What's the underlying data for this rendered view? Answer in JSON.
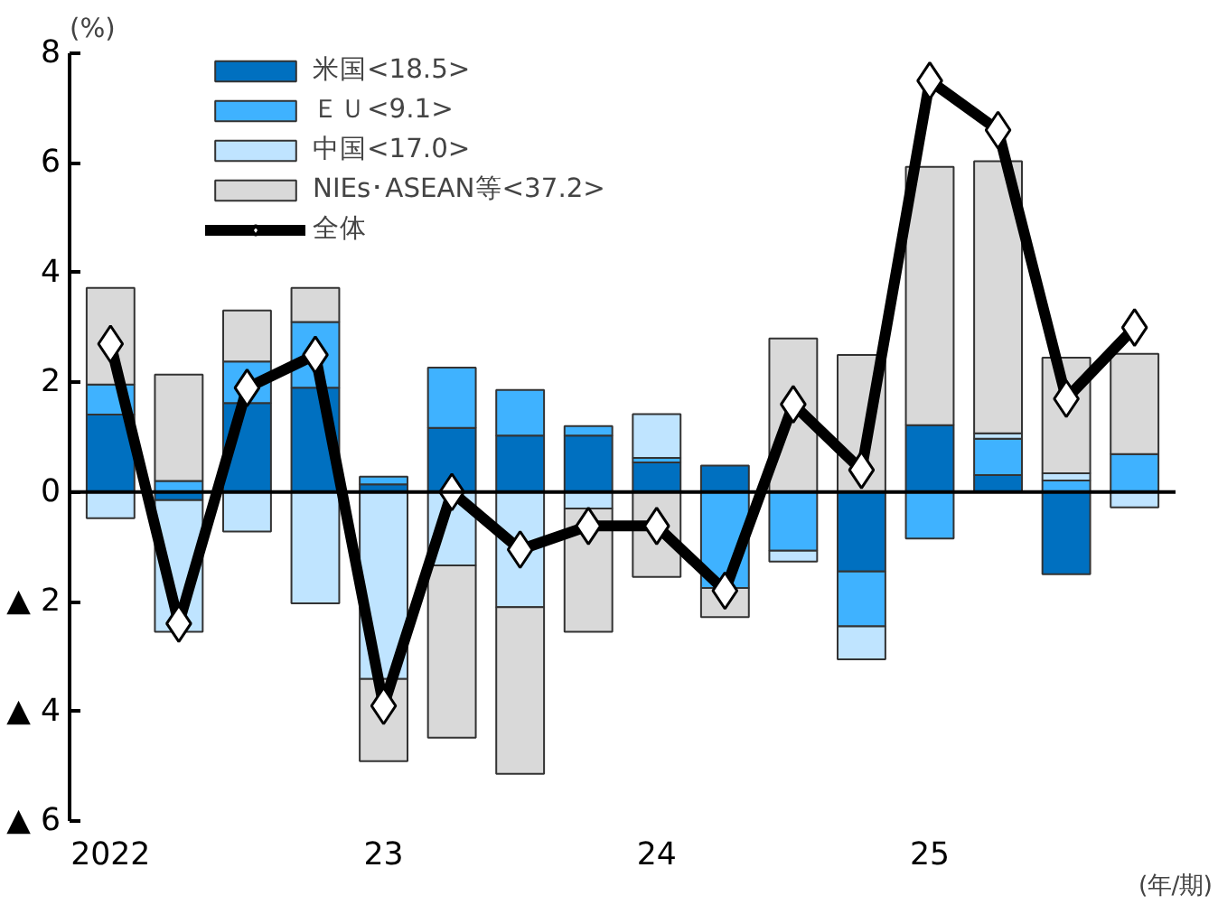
{
  "chart_data": {
    "type": "bar",
    "stacked": true,
    "ylabel": "(%)",
    "xlabel": "(年/期)",
    "categories": [
      "2022",
      null,
      null,
      null,
      "23",
      null,
      null,
      null,
      "24",
      null,
      null,
      null,
      "25",
      null,
      null,
      null
    ],
    "series": [
      {
        "name": "米国<18.5>",
        "color": "#0070c0",
        "values": [
          1.41,
          -0.15,
          1.62,
          1.9,
          0.14,
          1.17,
          1.03,
          1.03,
          0.54,
          0.48,
          null,
          -1.45,
          1.22,
          0.31,
          -1.5,
          null
        ]
      },
      {
        "name": "ＥＵ<9.1>",
        "color": "#3fb2ff",
        "values": [
          0.55,
          0.2,
          0.76,
          1.2,
          0.14,
          1.1,
          0.83,
          0.17,
          0.08,
          -1.75,
          -1.07,
          -1.0,
          -0.85,
          0.66,
          0.21,
          0.69
        ]
      },
      {
        "name": "中国<17.0>",
        "color": "#bfe4ff",
        "values": [
          -0.48,
          -2.4,
          -0.72,
          -2.03,
          -3.41,
          -1.34,
          -2.1,
          -0.3,
          0.8,
          null,
          -0.2,
          -0.6,
          null,
          0.1,
          0.13,
          -0.28
        ]
      },
      {
        "name": "NIEs･ASEAN等<37.2>",
        "color": "#d9d9d9",
        "values": [
          1.76,
          1.94,
          0.93,
          0.62,
          -1.5,
          -3.14,
          -3.04,
          -2.25,
          -1.55,
          -0.53,
          2.8,
          2.5,
          4.71,
          4.96,
          2.11,
          1.83
        ]
      },
      {
        "name": "全体",
        "type": "line",
        "color": "#000000",
        "marker": "diamond",
        "values": [
          2.7,
          -2.4,
          1.9,
          2.5,
          -3.9,
          0.0,
          -1.05,
          -0.62,
          -0.62,
          -1.8,
          1.6,
          0.4,
          7.5,
          6.6,
          1.7,
          3.0
        ]
      }
    ],
    "ylim": [
      -6,
      8
    ],
    "yticks": [
      {
        "value": -6,
        "label": "▲ 6"
      },
      {
        "value": -4,
        "label": "▲ 4"
      },
      {
        "value": -2,
        "label": "▲ 2"
      },
      0,
      2,
      4,
      6,
      8
    ],
    "ref_lines": [
      {
        "axis": "y",
        "value": 0,
        "color": "#000000"
      }
    ],
    "grid": false,
    "legend": "top left"
  }
}
